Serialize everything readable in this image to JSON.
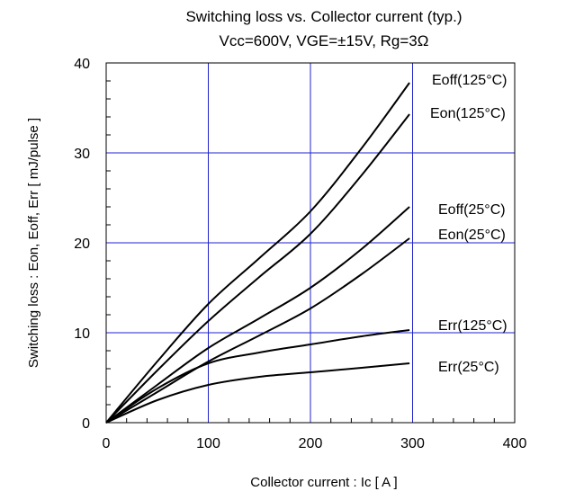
{
  "chart_data": {
    "type": "line",
    "title": "Switching loss  vs.  Collector current  (typ.)",
    "subtitle": "Vcc=600V, VGE=±15V, Rg=3Ω",
    "xlabel": "Collector current  :  Ic  [ A ]",
    "ylabel": "Switching loss  :  Eon, Eoff, Err  [ mJ/pulse ]",
    "xlim": [
      0,
      400
    ],
    "ylim": [
      0,
      40
    ],
    "xticks": [
      0,
      100,
      200,
      300,
      400
    ],
    "yticks": [
      0,
      10,
      20,
      30,
      40
    ],
    "grid": true,
    "grid_color": "#2222cc",
    "line_color": "#000000",
    "series": [
      {
        "name": "Eoff(125°C)",
        "x": [
          0,
          50,
          100,
          150,
          200,
          250,
          297
        ],
        "y": [
          0,
          6.8,
          13.2,
          18.3,
          23.5,
          30.5,
          37.8
        ]
      },
      {
        "name": "Eon(125°C)",
        "x": [
          0,
          50,
          100,
          150,
          200,
          250,
          297
        ],
        "y": [
          0,
          5.8,
          11.3,
          16.2,
          21.0,
          27.5,
          34.3
        ]
      },
      {
        "name": "Eoff(25°C)",
        "x": [
          0,
          50,
          100,
          150,
          200,
          250,
          297
        ],
        "y": [
          0,
          4.2,
          8.3,
          11.6,
          15.0,
          19.3,
          24.0
        ]
      },
      {
        "name": "Eon(25°C)",
        "x": [
          0,
          50,
          100,
          150,
          200,
          250,
          297
        ],
        "y": [
          0,
          3.4,
          6.8,
          9.7,
          12.7,
          16.5,
          20.5
        ]
      },
      {
        "name": "Err(125°C)",
        "x": [
          0,
          50,
          100,
          150,
          200,
          250,
          297
        ],
        "y": [
          0,
          3.8,
          6.6,
          7.8,
          8.7,
          9.6,
          10.3
        ]
      },
      {
        "name": "Err(25°C)",
        "x": [
          0,
          50,
          100,
          150,
          200,
          250,
          297
        ],
        "y": [
          0,
          2.5,
          4.2,
          5.1,
          5.6,
          6.1,
          6.6
        ]
      }
    ],
    "annotations": [
      "Eoff(125°C)",
      "Eon(125°C)",
      "Eoff(25°C)",
      "Eon(25°C)",
      "Err(125°C)",
      "Err(25°C)"
    ]
  }
}
